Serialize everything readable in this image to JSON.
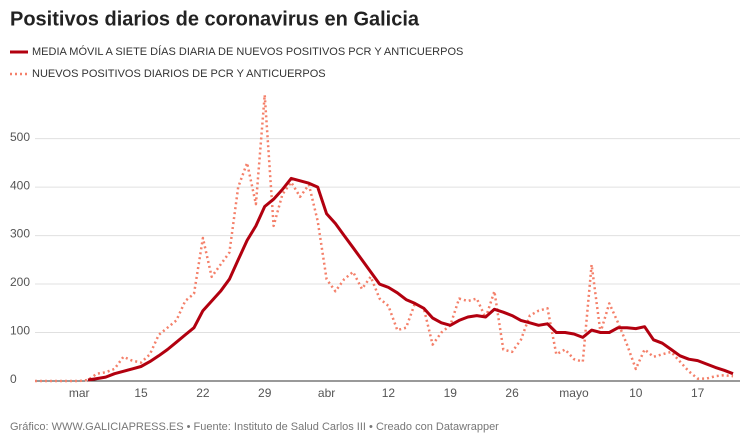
{
  "chart_data": {
    "type": "line",
    "title": "Positivos diarios de coronavirus en Galicia",
    "source": "Gráfico: WWW.GALICIAPRESS.ES • Fuente: Instituto de Salud Carlos III • Creado con Datawrapper",
    "categories": [
      null,
      null,
      null,
      null,
      null,
      "mar",
      null,
      null,
      null,
      null,
      null,
      null,
      "15",
      null,
      null,
      null,
      null,
      null,
      null,
      "22",
      null,
      null,
      null,
      null,
      null,
      null,
      "29",
      null,
      null,
      null,
      null,
      null,
      null,
      "abr",
      null,
      null,
      null,
      null,
      null,
      null,
      "12",
      null,
      null,
      null,
      null,
      null,
      null,
      "19",
      null,
      null,
      null,
      null,
      null,
      null,
      "26",
      null,
      null,
      null,
      null,
      null,
      null,
      "mayo",
      null,
      null,
      null,
      null,
      null,
      null,
      "10",
      null,
      null,
      null,
      null,
      null,
      null,
      "17",
      null,
      null,
      null,
      null
    ],
    "series": [
      {
        "name": "MEDIA MÓVIL A SIETE DÍAS DIARIA DE NUEVOS POSITIVOS PCR Y ANTICUERPOS",
        "color": "#b2000f",
        "style": "solid",
        "values": [
          null,
          null,
          null,
          null,
          null,
          null,
          2,
          5,
          8,
          15,
          20,
          25,
          30,
          40,
          52,
          65,
          80,
          95,
          110,
          145,
          165,
          185,
          210,
          250,
          290,
          320,
          360,
          375,
          395,
          418,
          413,
          408,
          400,
          345,
          325,
          300,
          275,
          250,
          225,
          200,
          193,
          182,
          168,
          160,
          150,
          130,
          120,
          115,
          125,
          132,
          135,
          132,
          148,
          142,
          135,
          125,
          120,
          115,
          118,
          100,
          100,
          97,
          90,
          105,
          100,
          100,
          110,
          110,
          108,
          112,
          85,
          78,
          65,
          52,
          45,
          42,
          35,
          28,
          22,
          15
        ]
      },
      {
        "name": "NUEVOS POSITIVOS DIARIOS DE PCR Y ANTICUERPOS",
        "color": "#f4806a",
        "style": "dotted",
        "values": [
          0,
          0,
          0,
          0,
          0,
          0,
          2,
          15,
          18,
          25,
          50,
          42,
          38,
          55,
          95,
          110,
          125,
          165,
          180,
          295,
          215,
          240,
          265,
          400,
          450,
          365,
          590,
          320,
          385,
          410,
          380,
          405,
          330,
          210,
          185,
          210,
          225,
          190,
          215,
          170,
          155,
          105,
          110,
          160,
          150,
          75,
          100,
          115,
          170,
          165,
          170,
          130,
          185,
          65,
          60,
          85,
          135,
          145,
          150,
          55,
          65,
          45,
          40,
          240,
          100,
          160,
          120,
          75,
          25,
          65,
          50,
          55,
          60,
          40,
          20,
          5,
          5,
          10,
          12,
          10
        ]
      }
    ],
    "ylim": [
      0,
      590
    ],
    "yticks": [
      0,
      100,
      200,
      300,
      400,
      500
    ],
    "grid": true
  }
}
